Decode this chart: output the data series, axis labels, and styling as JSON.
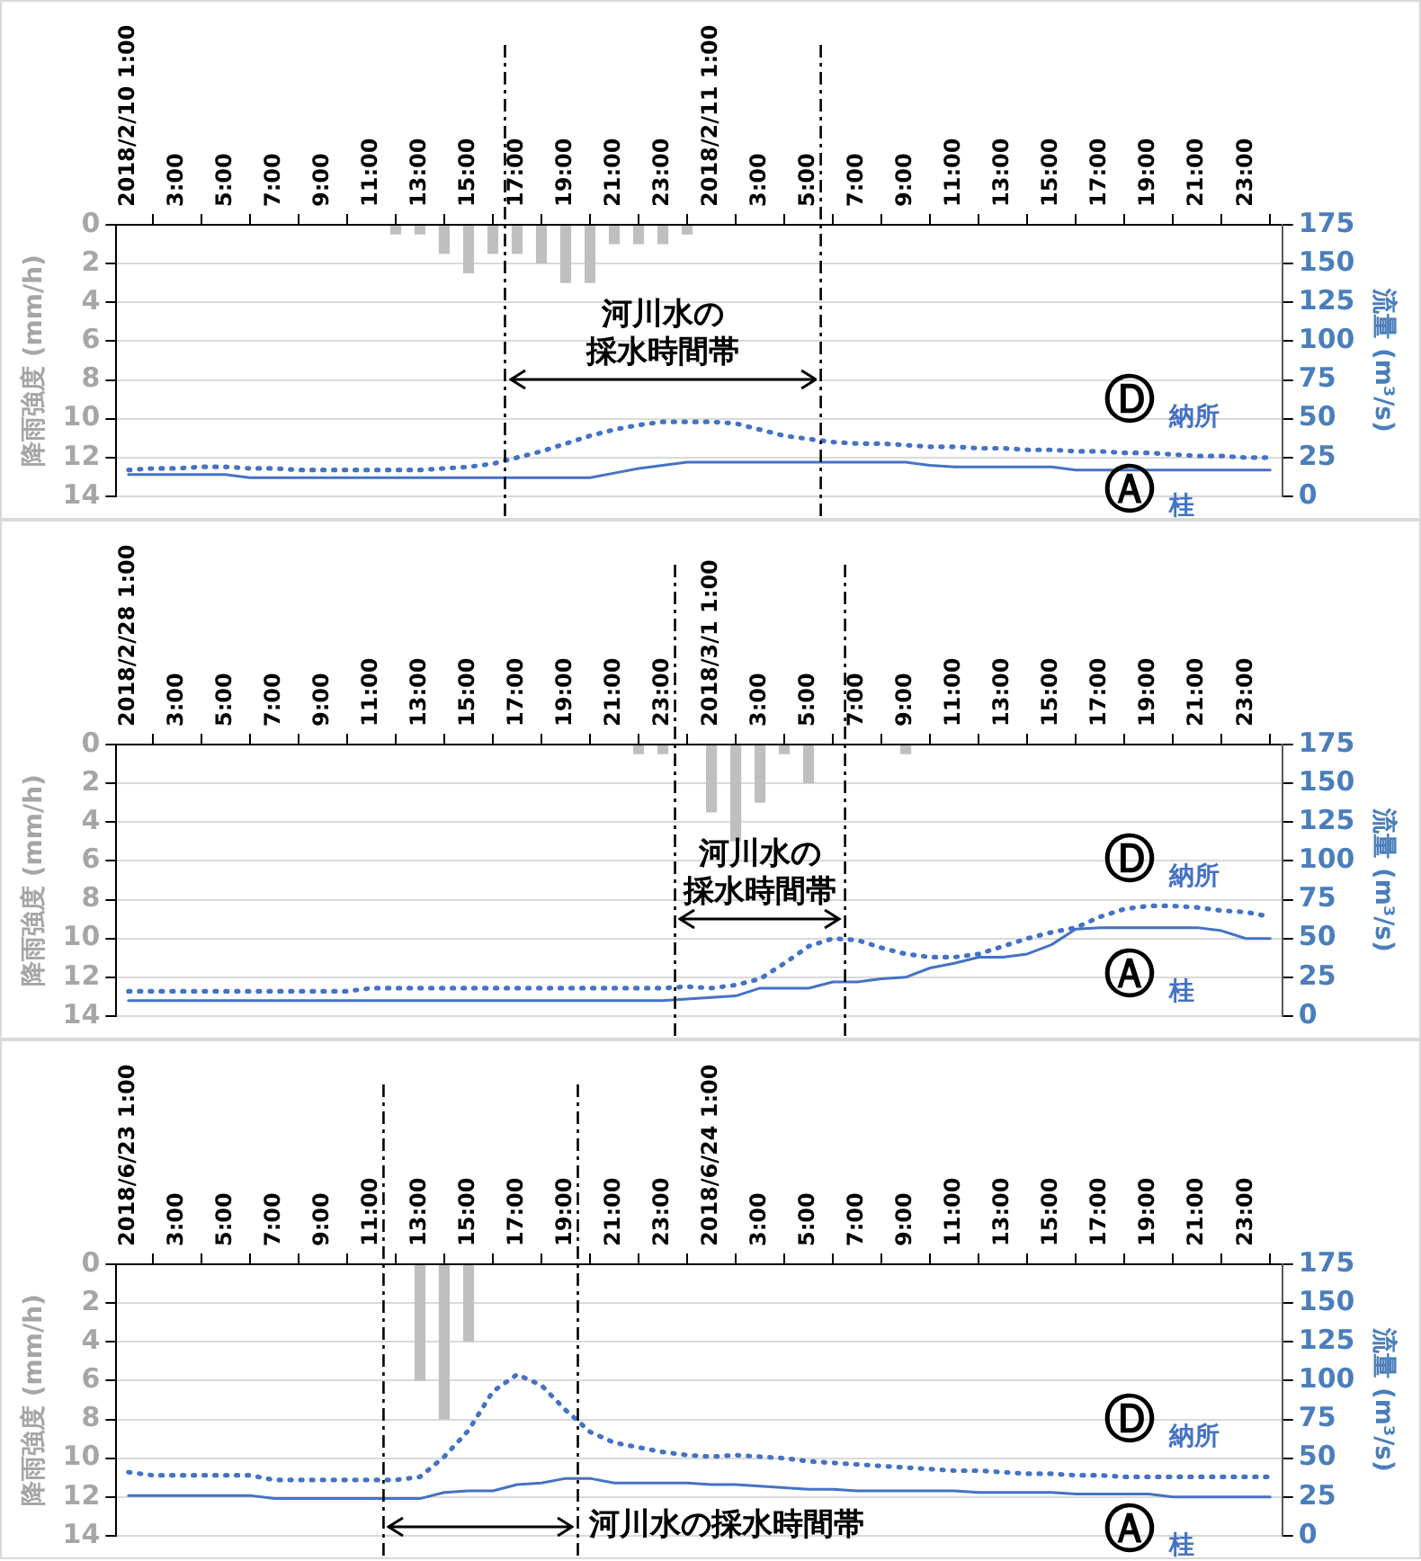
{
  "chart_data": [
    {
      "type": "bar",
      "ylabel": "降雨強度 (mm/h)",
      "y2label": "流量 (m³/s)",
      "grid": "y",
      "legend": false,
      "marker": "none",
      "x": [
        "2018-02-10T01:00",
        "2018-02-10T02:00",
        "2018-02-10T03:00",
        "2018-02-10T04:00",
        "2018-02-10T05:00",
        "2018-02-10T06:00",
        "2018-02-10T07:00",
        "2018-02-10T08:00",
        "2018-02-10T09:00",
        "2018-02-10T10:00",
        "2018-02-10T11:00",
        "2018-02-10T12:00",
        "2018-02-10T13:00",
        "2018-02-10T14:00",
        "2018-02-10T15:00",
        "2018-02-10T16:00",
        "2018-02-10T17:00",
        "2018-02-10T18:00",
        "2018-02-10T19:00",
        "2018-02-10T20:00",
        "2018-02-10T21:00",
        "2018-02-10T22:00",
        "2018-02-10T23:00",
        "2018-02-11T00:00",
        "2018-02-11T01:00",
        "2018-02-11T02:00",
        "2018-02-11T03:00",
        "2018-02-11T04:00",
        "2018-02-11T05:00",
        "2018-02-11T06:00",
        "2018-02-11T07:00",
        "2018-02-11T08:00",
        "2018-02-11T09:00",
        "2018-02-11T10:00",
        "2018-02-11T11:00",
        "2018-02-11T12:00",
        "2018-02-11T13:00",
        "2018-02-11T14:00",
        "2018-02-11T15:00",
        "2018-02-11T16:00",
        "2018-02-11T17:00",
        "2018-02-11T18:00",
        "2018-02-11T19:00",
        "2018-02-11T20:00",
        "2018-02-11T21:00",
        "2018-02-11T22:00",
        "2018-02-11T23:00",
        "2018-02-12T00:00"
      ],
      "xlim": [
        "2018-02-10T00:30",
        "2018-02-12T00:30"
      ],
      "xticks": [
        {
          "value": "2018-02-10T01:00",
          "label": "2018/2/10 1:00"
        },
        {
          "value": "2018-02-10T03:00",
          "label": "3:00"
        },
        {
          "value": "2018-02-10T05:00",
          "label": "5:00"
        },
        {
          "value": "2018-02-10T07:00",
          "label": "7:00"
        },
        {
          "value": "2018-02-10T09:00",
          "label": "9:00"
        },
        {
          "value": "2018-02-10T11:00",
          "label": "11:00"
        },
        {
          "value": "2018-02-10T13:00",
          "label": "13:00"
        },
        {
          "value": "2018-02-10T15:00",
          "label": "15:00"
        },
        {
          "value": "2018-02-10T17:00",
          "label": "17:00"
        },
        {
          "value": "2018-02-10T19:00",
          "label": "19:00"
        },
        {
          "value": "2018-02-10T21:00",
          "label": "21:00"
        },
        {
          "value": "2018-02-10T23:00",
          "label": "23:00"
        },
        {
          "value": "2018-02-11T01:00",
          "label": "2018/2/11 1:00"
        },
        {
          "value": "2018-02-11T03:00",
          "label": "3:00"
        },
        {
          "value": "2018-02-11T05:00",
          "label": "5:00"
        },
        {
          "value": "2018-02-11T07:00",
          "label": "7:00"
        },
        {
          "value": "2018-02-11T09:00",
          "label": "9:00"
        },
        {
          "value": "2018-02-11T11:00",
          "label": "11:00"
        },
        {
          "value": "2018-02-11T13:00",
          "label": "13:00"
        },
        {
          "value": "2018-02-11T15:00",
          "label": "15:00"
        },
        {
          "value": "2018-02-11T17:00",
          "label": "17:00"
        },
        {
          "value": "2018-02-11T19:00",
          "label": "19:00"
        },
        {
          "value": "2018-02-11T21:00",
          "label": "21:00"
        },
        {
          "value": "2018-02-11T23:00",
          "label": "23:00"
        }
      ],
      "ylim": [
        14,
        0
      ],
      "yticks": [
        0,
        2,
        4,
        6,
        8,
        10,
        12,
        14
      ],
      "y2lim": [
        0,
        175
      ],
      "y2ticks": [
        0,
        25,
        50,
        75,
        100,
        125,
        150,
        175
      ],
      "series": [
        {
          "color": "#bfbfbf",
          "values": [
            0,
            0,
            0,
            0,
            0,
            0,
            0,
            0,
            0,
            0,
            0,
            0.5,
            0.5,
            1.5,
            2.5,
            1.5,
            1.5,
            2,
            3,
            3,
            1,
            1,
            1,
            0.5,
            0,
            0,
            0,
            0,
            0,
            0,
            0,
            0,
            0,
            0,
            0,
            0,
            0,
            0,
            0,
            0,
            0,
            0,
            0,
            0,
            0,
            0,
            0,
            0
          ]
        },
        {
          "type": "line",
          "name": "Ⓓ納所",
          "axis": "y2",
          "line_style": "dotted",
          "color": "#4472c4",
          "values": [
            17,
            18,
            18,
            19,
            19,
            18,
            18,
            17,
            17,
            17,
            17,
            17,
            17,
            18,
            19,
            21,
            25,
            29,
            34,
            39,
            43,
            46,
            48,
            48,
            48,
            47,
            43,
            39,
            37,
            35,
            34,
            34,
            33,
            32,
            32,
            31,
            31,
            30,
            30,
            29,
            29,
            28,
            28,
            27,
            26,
            26,
            25,
            25
          ]
        },
        {
          "type": "line",
          "name": "Ⓐ桂",
          "axis": "y2",
          "line_style": "solid",
          "color": "#4472c4",
          "values": [
            14,
            14,
            14,
            14,
            14,
            12,
            12,
            12,
            12,
            12,
            12,
            12,
            12,
            12,
            12,
            12,
            12,
            12,
            12,
            12,
            15,
            18,
            20,
            22,
            22,
            22,
            22,
            22,
            22,
            22,
            22,
            22,
            22,
            20,
            19,
            19,
            19,
            19,
            19,
            17,
            17,
            17,
            17,
            17,
            17,
            17,
            17,
            17
          ]
        }
      ],
      "ref_lines": [
        {
          "axis": "x",
          "value": "2018-02-10T16:30",
          "color": "#000000",
          "line_style": "dashed"
        },
        {
          "axis": "x",
          "value": "2018-02-11T05:30",
          "color": "#000000",
          "line_style": "dashed"
        }
      ],
      "annotations": [
        {
          "text": "河川水の採水時間帯",
          "x": "2018-02-11T05:30",
          "y": 8
        }
      ]
    },
    {
      "type": "bar",
      "ylabel": "降雨強度 (mm/h)",
      "y2label": "流量 (m³/s)",
      "grid": "y",
      "legend": false,
      "marker": "none",
      "x": [
        "2018-02-28T01:00",
        "2018-02-28T02:00",
        "2018-02-28T03:00",
        "2018-02-28T04:00",
        "2018-02-28T05:00",
        "2018-02-28T06:00",
        "2018-02-28T07:00",
        "2018-02-28T08:00",
        "2018-02-28T09:00",
        "2018-02-28T10:00",
        "2018-02-28T11:00",
        "2018-02-28T12:00",
        "2018-02-28T13:00",
        "2018-02-28T14:00",
        "2018-02-28T15:00",
        "2018-02-28T16:00",
        "2018-02-28T17:00",
        "2018-02-28T18:00",
        "2018-02-28T19:00",
        "2018-02-28T20:00",
        "2018-02-28T21:00",
        "2018-02-28T22:00",
        "2018-02-28T23:00",
        "2018-03-01T00:00",
        "2018-03-01T01:00",
        "2018-03-01T02:00",
        "2018-03-01T03:00",
        "2018-03-01T04:00",
        "2018-03-01T05:00",
        "2018-03-01T06:00",
        "2018-03-01T07:00",
        "2018-03-01T08:00",
        "2018-03-01T09:00",
        "2018-03-01T10:00",
        "2018-03-01T11:00",
        "2018-03-01T12:00",
        "2018-03-01T13:00",
        "2018-03-01T14:00",
        "2018-03-01T15:00",
        "2018-03-01T16:00",
        "2018-03-01T17:00",
        "2018-03-01T18:00",
        "2018-03-01T19:00",
        "2018-03-01T20:00",
        "2018-03-01T21:00",
        "2018-03-01T22:00",
        "2018-03-01T23:00",
        "2018-03-02T00:00"
      ],
      "xlim": [
        "2018-02-28T00:30",
        "2018-03-02T00:30"
      ],
      "xticks": [
        {
          "value": "2018-02-28T01:00",
          "label": "2018/2/28 1:00"
        },
        {
          "value": "2018-02-28T03:00",
          "label": "3:00"
        },
        {
          "value": "2018-02-28T05:00",
          "label": "5:00"
        },
        {
          "value": "2018-02-28T07:00",
          "label": "7:00"
        },
        {
          "value": "2018-02-28T09:00",
          "label": "9:00"
        },
        {
          "value": "2018-02-28T11:00",
          "label": "11:00"
        },
        {
          "value": "2018-02-28T13:00",
          "label": "13:00"
        },
        {
          "value": "2018-02-28T15:00",
          "label": "15:00"
        },
        {
          "value": "2018-02-28T17:00",
          "label": "17:00"
        },
        {
          "value": "2018-02-28T19:00",
          "label": "19:00"
        },
        {
          "value": "2018-02-28T21:00",
          "label": "21:00"
        },
        {
          "value": "2018-02-28T23:00",
          "label": "23:00"
        },
        {
          "value": "2018-03-01T01:00",
          "label": "2018/3/1 1:00"
        },
        {
          "value": "2018-03-01T03:00",
          "label": "3:00"
        },
        {
          "value": "2018-03-01T05:00",
          "label": "5:00"
        },
        {
          "value": "2018-03-01T07:00",
          "label": "7:00"
        },
        {
          "value": "2018-03-01T09:00",
          "label": "9:00"
        },
        {
          "value": "2018-03-01T11:00",
          "label": "11:00"
        },
        {
          "value": "2018-03-01T13:00",
          "label": "13:00"
        },
        {
          "value": "2018-03-01T15:00",
          "label": "15:00"
        },
        {
          "value": "2018-03-01T17:00",
          "label": "17:00"
        },
        {
          "value": "2018-03-01T19:00",
          "label": "19:00"
        },
        {
          "value": "2018-03-01T21:00",
          "label": "21:00"
        },
        {
          "value": "2018-03-01T23:00",
          "label": "23:00"
        }
      ],
      "ylim": [
        14,
        0
      ],
      "yticks": [
        0,
        2,
        4,
        6,
        8,
        10,
        12,
        14
      ],
      "y2lim": [
        0,
        175
      ],
      "y2ticks": [
        0,
        25,
        50,
        75,
        100,
        125,
        150,
        175
      ],
      "series": [
        {
          "color": "#bfbfbf",
          "values": [
            0,
            0,
            0,
            0,
            0,
            0,
            0,
            0,
            0,
            0,
            0,
            0,
            0,
            0,
            0,
            0,
            0,
            0,
            0,
            0,
            0,
            0.5,
            0.5,
            0,
            3.5,
            5,
            3,
            0.5,
            2,
            0,
            0,
            0,
            0.5,
            0,
            0,
            0,
            0,
            0,
            0,
            0,
            0,
            0,
            0,
            0,
            0,
            0,
            0,
            0
          ]
        },
        {
          "type": "line",
          "name": "Ⓓ納所",
          "axis": "y2",
          "line_style": "dotted",
          "color": "#4472c4",
          "values": [
            16,
            16,
            16,
            16,
            16,
            16,
            16,
            16,
            16,
            16,
            18,
            18,
            18,
            18,
            18,
            18,
            18,
            18,
            18,
            18,
            18,
            18,
            18,
            19,
            18,
            20,
            24,
            34,
            45,
            50,
            49,
            44,
            40,
            38,
            38,
            40,
            45,
            50,
            54,
            57,
            64,
            69,
            71,
            71,
            70,
            68,
            67,
            64
          ]
        },
        {
          "type": "line",
          "name": "Ⓐ桂",
          "axis": "y2",
          "line_style": "solid",
          "color": "#4472c4",
          "values": [
            10,
            10,
            10,
            10,
            10,
            10,
            10,
            10,
            10,
            10,
            10,
            10,
            10,
            10,
            10,
            10,
            10,
            10,
            10,
            10,
            10,
            10,
            10,
            11,
            12,
            13,
            18,
            18,
            18,
            22,
            22,
            24,
            25,
            31,
            34,
            38,
            38,
            40,
            46,
            56,
            57,
            57,
            57,
            57,
            57,
            55,
            50,
            50
          ]
        }
      ],
      "ref_lines": [
        {
          "axis": "x",
          "value": "2018-02-28T23:30",
          "color": "#000000",
          "line_style": "dashed"
        },
        {
          "axis": "x",
          "value": "2018-03-01T06:30",
          "color": "#000000",
          "line_style": "dashed"
        }
      ],
      "annotations": [
        {
          "text": "河川水の採水時間帯",
          "x": "2018-03-01T06:30",
          "y": 9
        }
      ]
    },
    {
      "type": "bar",
      "ylabel": "降雨強度 (mm/h)",
      "y2label": "流量 (m³/s)",
      "grid": "y",
      "legend": false,
      "marker": "none",
      "x": [
        "2018-06-23T01:00",
        "2018-06-23T02:00",
        "2018-06-23T03:00",
        "2018-06-23T04:00",
        "2018-06-23T05:00",
        "2018-06-23T06:00",
        "2018-06-23T07:00",
        "2018-06-23T08:00",
        "2018-06-23T09:00",
        "2018-06-23T10:00",
        "2018-06-23T11:00",
        "2018-06-23T12:00",
        "2018-06-23T13:00",
        "2018-06-23T14:00",
        "2018-06-23T15:00",
        "2018-06-23T16:00",
        "2018-06-23T17:00",
        "2018-06-23T18:00",
        "2018-06-23T19:00",
        "2018-06-23T20:00",
        "2018-06-23T21:00",
        "2018-06-23T22:00",
        "2018-06-23T23:00",
        "2018-06-24T00:00",
        "2018-06-24T01:00",
        "2018-06-24T02:00",
        "2018-06-24T03:00",
        "2018-06-24T04:00",
        "2018-06-24T05:00",
        "2018-06-24T06:00",
        "2018-06-24T07:00",
        "2018-06-24T08:00",
        "2018-06-24T09:00",
        "2018-06-24T10:00",
        "2018-06-24T11:00",
        "2018-06-24T12:00",
        "2018-06-24T13:00",
        "2018-06-24T14:00",
        "2018-06-24T15:00",
        "2018-06-24T16:00",
        "2018-06-24T17:00",
        "2018-06-24T18:00",
        "2018-06-24T19:00",
        "2018-06-24T20:00",
        "2018-06-24T21:00",
        "2018-06-24T22:00",
        "2018-06-24T23:00",
        "2018-06-25T00:00"
      ],
      "xlim": [
        "2018-06-23T00:30",
        "2018-06-25T00:30"
      ],
      "xticks": [
        {
          "value": "2018-06-23T01:00",
          "label": "2018/6/23 1:00"
        },
        {
          "value": "2018-06-23T03:00",
          "label": "3:00"
        },
        {
          "value": "2018-06-23T05:00",
          "label": "5:00"
        },
        {
          "value": "2018-06-23T07:00",
          "label": "7:00"
        },
        {
          "value": "2018-06-23T09:00",
          "label": "9:00"
        },
        {
          "value": "2018-06-23T11:00",
          "label": "11:00"
        },
        {
          "value": "2018-06-23T13:00",
          "label": "13:00"
        },
        {
          "value": "2018-06-23T15:00",
          "label": "15:00"
        },
        {
          "value": "2018-06-23T17:00",
          "label": "17:00"
        },
        {
          "value": "2018-06-23T19:00",
          "label": "19:00"
        },
        {
          "value": "2018-06-23T21:00",
          "label": "21:00"
        },
        {
          "value": "2018-06-23T23:00",
          "label": "23:00"
        },
        {
          "value": "2018-06-24T01:00",
          "label": "2018/6/24 1:00"
        },
        {
          "value": "2018-06-24T03:00",
          "label": "3:00"
        },
        {
          "value": "2018-06-24T05:00",
          "label": "5:00"
        },
        {
          "value": "2018-06-24T07:00",
          "label": "7:00"
        },
        {
          "value": "2018-06-24T09:00",
          "label": "9:00"
        },
        {
          "value": "2018-06-24T11:00",
          "label": "11:00"
        },
        {
          "value": "2018-06-24T13:00",
          "label": "13:00"
        },
        {
          "value": "2018-06-24T15:00",
          "label": "15:00"
        },
        {
          "value": "2018-06-24T17:00",
          "label": "17:00"
        },
        {
          "value": "2018-06-24T19:00",
          "label": "19:00"
        },
        {
          "value": "2018-06-24T21:00",
          "label": "21:00"
        },
        {
          "value": "2018-06-24T23:00",
          "label": "23:00"
        }
      ],
      "ylim": [
        14,
        0
      ],
      "yticks": [
        0,
        2,
        4,
        6,
        8,
        10,
        12,
        14
      ],
      "y2lim": [
        0,
        175
      ],
      "y2ticks": [
        0,
        25,
        50,
        75,
        100,
        125,
        150,
        175
      ],
      "series": [
        {
          "color": "#bfbfbf",
          "values": [
            0,
            0,
            0,
            0,
            0,
            0,
            0,
            0,
            0,
            0,
            0,
            0,
            6,
            8,
            4,
            0,
            0,
            0,
            0,
            0,
            0,
            0,
            0,
            0,
            0,
            0,
            0,
            0,
            0,
            0,
            0,
            0,
            0,
            0,
            0,
            0,
            0,
            0,
            0,
            0,
            0,
            0,
            0,
            0,
            0,
            0,
            0,
            0
          ]
        },
        {
          "type": "line",
          "name": "Ⓓ納所",
          "axis": "y2",
          "line_style": "dotted",
          "color": "#4472c4",
          "values": [
            41,
            39,
            39,
            39,
            39,
            39,
            36,
            36,
            36,
            36,
            36,
            36,
            38,
            51,
            68,
            93,
            104,
            97,
            81,
            67,
            60,
            57,
            54,
            52,
            51,
            52,
            51,
            50,
            48,
            47,
            46,
            45,
            44,
            43,
            42,
            42,
            41,
            40,
            40,
            39,
            39,
            38,
            38,
            38,
            38,
            38,
            38,
            38
          ]
        },
        {
          "type": "line",
          "name": "Ⓐ桂",
          "axis": "y2",
          "line_style": "solid",
          "color": "#4472c4",
          "values": [
            26,
            26,
            26,
            26,
            26,
            26,
            24,
            24,
            24,
            24,
            24,
            24,
            24,
            28,
            29,
            29,
            33,
            34,
            37,
            37,
            34,
            34,
            34,
            34,
            33,
            33,
            32,
            31,
            30,
            30,
            29,
            29,
            29,
            29,
            29,
            28,
            28,
            28,
            28,
            27,
            27,
            27,
            27,
            25,
            25,
            25,
            25,
            25
          ]
        }
      ],
      "ref_lines": [
        {
          "axis": "x",
          "value": "2018-06-23T11:30",
          "color": "#000000",
          "line_style": "dashed"
        },
        {
          "axis": "x",
          "value": "2018-06-23T19:30",
          "color": "#000000",
          "line_style": "dashed"
        }
      ],
      "annotations": [
        {
          "text": "河川水の採水時間帯",
          "x": "2018-06-23T19:30",
          "y": 13.5
        }
      ]
    }
  ]
}
